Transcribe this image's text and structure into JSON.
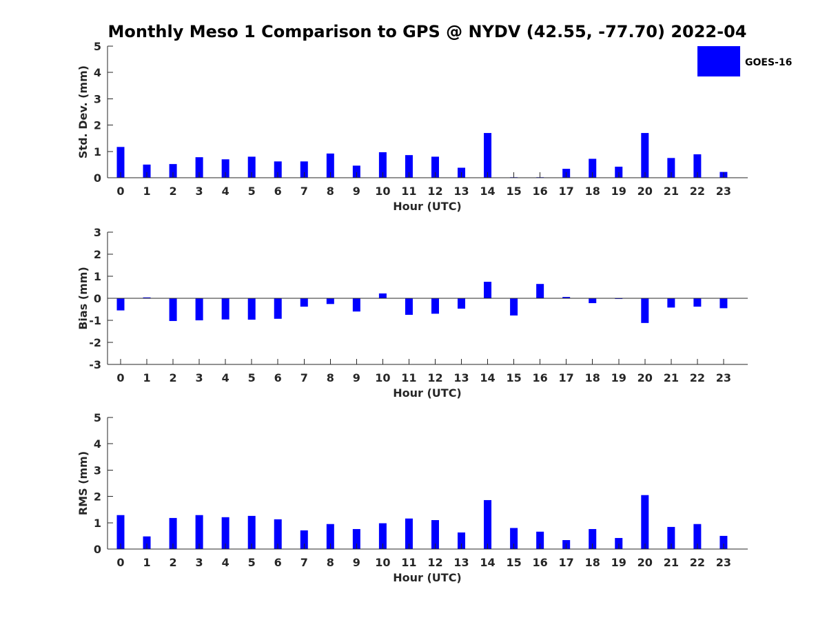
{
  "chart_data": {
    "type": "bar",
    "title": "Monthly Meso 1 Comparison to GPS @ NYDV (42.55, -77.70) 2022-04",
    "bar_color": "#0000ff",
    "legend": {
      "label": "GOES-16",
      "placement": "top-right"
    },
    "categories": [
      "0",
      "1",
      "2",
      "3",
      "4",
      "5",
      "6",
      "7",
      "8",
      "9",
      "10",
      "11",
      "12",
      "13",
      "14",
      "15",
      "16",
      "17",
      "18",
      "19",
      "20",
      "21",
      "22",
      "23"
    ],
    "panels": [
      {
        "id": "std",
        "ylabel": "Std. Dev. (mm)",
        "xlabel": "Hour (UTC)",
        "ylim": [
          0,
          5
        ],
        "yticks": [
          "0",
          "1",
          "2",
          "3",
          "4",
          "5"
        ],
        "values": [
          1.17,
          0.5,
          0.52,
          0.78,
          0.7,
          0.8,
          0.62,
          0.62,
          0.92,
          0.46,
          0.97,
          0.86,
          0.8,
          0.38,
          1.7,
          0.02,
          0.02,
          0.34,
          0.72,
          0.42,
          1.7,
          0.75,
          0.89,
          0.22
        ]
      },
      {
        "id": "bias",
        "ylabel": "Bias (mm)",
        "xlabel": "Hour (UTC)",
        "ylim": [
          -3,
          3
        ],
        "yticks": [
          "-3",
          "-2",
          "-1",
          "0",
          "1",
          "2",
          "3"
        ],
        "values": [
          -0.55,
          0.04,
          -1.03,
          -1.0,
          -0.96,
          -0.97,
          -0.93,
          -0.38,
          -0.26,
          -0.6,
          0.22,
          -0.75,
          -0.7,
          -0.47,
          0.75,
          -0.78,
          0.65,
          0.06,
          -0.22,
          -0.03,
          -1.12,
          -0.42,
          -0.38,
          -0.45
        ]
      },
      {
        "id": "rms",
        "ylabel": "RMS (mm)",
        "xlabel": "Hour (UTC)",
        "ylim": [
          0,
          5
        ],
        "yticks": [
          "0",
          "1",
          "2",
          "3",
          "4",
          "5"
        ],
        "values": [
          1.29,
          0.48,
          1.18,
          1.29,
          1.21,
          1.26,
          1.13,
          0.71,
          0.95,
          0.76,
          0.98,
          1.16,
          1.1,
          0.63,
          1.86,
          0.8,
          0.66,
          0.34,
          0.76,
          0.42,
          2.05,
          0.84,
          0.95,
          0.5
        ]
      }
    ]
  }
}
